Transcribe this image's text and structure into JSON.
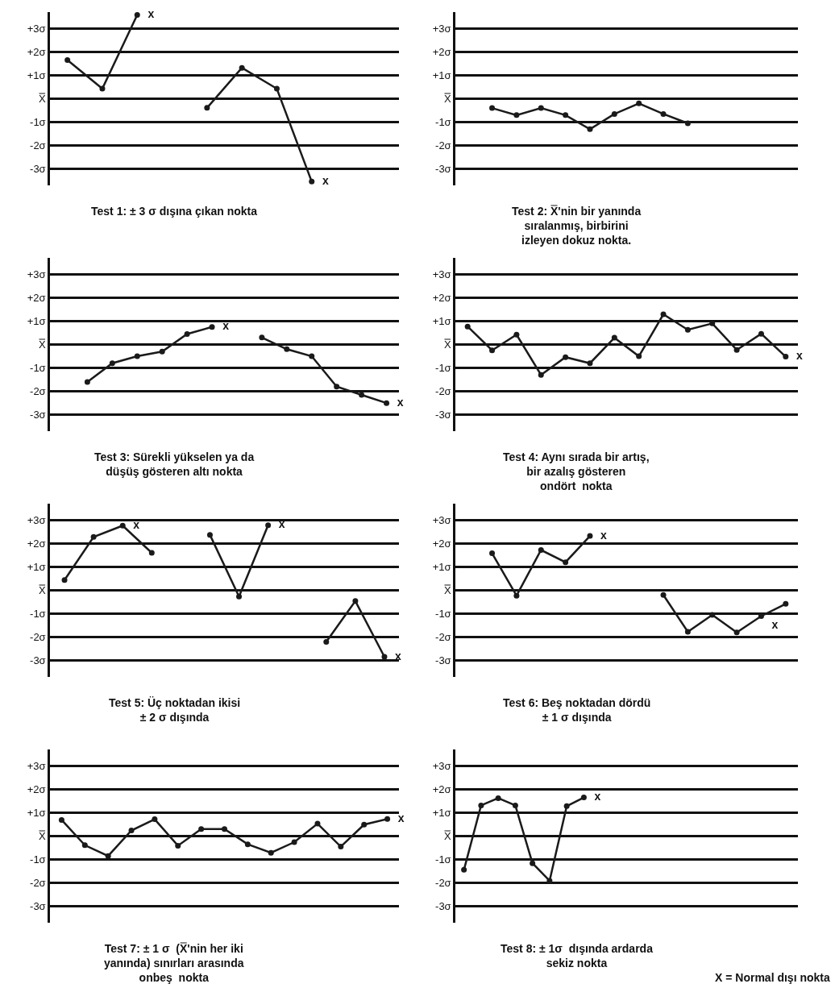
{
  "chart_data": [
    {
      "type": "line",
      "title": "Test 1: ± 3 σ dışına çıkan nokta",
      "categories": [
        null,
        null,
        null,
        null,
        null,
        null,
        null,
        null,
        null,
        null
      ],
      "ylim": [
        -3.7,
        3.7
      ],
      "yticks": [
        {
          "value": 3,
          "label": "+3σ"
        },
        {
          "value": 2,
          "label": "+2σ"
        },
        {
          "value": 1,
          "label": "+1σ"
        },
        {
          "value": 0,
          "label": "X̿"
        },
        {
          "value": -1,
          "label": "-1σ"
        },
        {
          "value": -2,
          "label": "-2σ"
        },
        {
          "value": -3,
          "label": "-3σ"
        }
      ],
      "tick_labels": "y",
      "grid": "y",
      "marker": "circle",
      "line_style": "solid",
      "series": [
        {
          "color": "#1a1a1a",
          "values": [
            1.65,
            0.43,
            3.58,
            null,
            -0.39,
            1.32,
            0.43,
            -3.54,
            null,
            null
          ],
          "value_labels": [
            null,
            null,
            "x",
            null,
            null,
            null,
            null,
            "x",
            null,
            null
          ]
        }
      ]
    },
    {
      "type": "line",
      "title": "Test 2: X̿'nin bir yanında\nsıralanmış, birbirini\nizleyen dokuz nokta.",
      "categories": [
        null,
        null,
        null,
        null,
        null,
        null,
        null,
        null,
        null,
        null,
        null,
        null,
        null,
        null
      ],
      "ylim": [
        -3.7,
        3.7
      ],
      "yticks": [
        {
          "value": 3,
          "label": "+3σ"
        },
        {
          "value": 2,
          "label": "+2σ"
        },
        {
          "value": 1,
          "label": "+1σ"
        },
        {
          "value": 0,
          "label": "X̿"
        },
        {
          "value": -1,
          "label": "-1σ"
        },
        {
          "value": -2,
          "label": "-2σ"
        },
        {
          "value": -3,
          "label": "-3σ"
        }
      ],
      "tick_labels": "y",
      "grid": "y",
      "marker": "circle",
      "line_style": "solid",
      "series": [
        {
          "color": "#1a1a1a",
          "values": [
            null,
            -0.4,
            -0.7,
            -0.4,
            -0.7,
            -1.3,
            -0.65,
            -0.2,
            -0.65,
            -1.05,
            null,
            null,
            null,
            null
          ]
        }
      ]
    },
    {
      "type": "line",
      "title": "Test 3: Sürekli yükselen ya da\ndüşüş gösteren altı nokta",
      "categories": [
        null,
        null,
        null,
        null,
        null,
        null,
        null,
        null,
        null,
        null,
        null,
        null,
        null,
        null
      ],
      "ylim": [
        -3.7,
        3.7
      ],
      "yticks": [
        {
          "value": 3,
          "label": "+3σ"
        },
        {
          "value": 2,
          "label": "+2σ"
        },
        {
          "value": 1,
          "label": "+1σ"
        },
        {
          "value": 0,
          "label": "X̿"
        },
        {
          "value": -1,
          "label": "-1σ"
        },
        {
          "value": -2,
          "label": "-2σ"
        },
        {
          "value": -3,
          "label": "-3σ"
        }
      ],
      "tick_labels": "y",
      "grid": "y",
      "marker": "circle",
      "line_style": "solid",
      "series": [
        {
          "color": "#1a1a1a",
          "values": [
            null,
            -1.6,
            -0.8,
            -0.5,
            -0.3,
            0.45,
            0.75,
            null,
            0.3,
            -0.2,
            -0.5,
            -1.8,
            -2.15,
            -2.5
          ],
          "value_labels": [
            null,
            null,
            null,
            null,
            null,
            null,
            "x",
            null,
            null,
            null,
            null,
            null,
            null,
            "x"
          ]
        }
      ]
    },
    {
      "type": "line",
      "title": "Test 4: Aynı sırada bir artış,\nbir azalış gösteren\nondört  nokta",
      "categories": [
        null,
        null,
        null,
        null,
        null,
        null,
        null,
        null,
        null,
        null,
        null,
        null,
        null,
        null
      ],
      "ylim": [
        -3.7,
        3.7
      ],
      "yticks": [
        {
          "value": 3,
          "label": "+3σ"
        },
        {
          "value": 2,
          "label": "+2σ"
        },
        {
          "value": 1,
          "label": "+1σ"
        },
        {
          "value": 0,
          "label": "X̿"
        },
        {
          "value": -1,
          "label": "-1σ"
        },
        {
          "value": -2,
          "label": "-2σ"
        },
        {
          "value": -3,
          "label": "-3σ"
        }
      ],
      "tick_labels": "y",
      "grid": "y",
      "marker": "circle",
      "line_style": "solid",
      "series": [
        {
          "color": "#1a1a1a",
          "values": [
            0.77,
            -0.25,
            0.42,
            -1.3,
            -0.54,
            -0.8,
            0.29,
            -0.5,
            1.29,
            0.63,
            0.9,
            -0.23,
            0.46,
            -0.52
          ],
          "value_labels": [
            null,
            null,
            null,
            null,
            null,
            null,
            null,
            null,
            null,
            null,
            null,
            null,
            null,
            "x"
          ]
        }
      ]
    },
    {
      "type": "line",
      "title": "Test 5: Üç noktadan ikisi\n± 2 σ dışında",
      "categories": [
        null,
        null,
        null,
        null,
        null,
        null,
        null,
        null,
        null,
        null,
        null,
        null
      ],
      "ylim": [
        -3.7,
        3.7
      ],
      "yticks": [
        {
          "value": 3,
          "label": "+3σ"
        },
        {
          "value": 2,
          "label": "+2σ"
        },
        {
          "value": 1,
          "label": "+1σ"
        },
        {
          "value": 0,
          "label": "X̿"
        },
        {
          "value": -1,
          "label": "-1σ"
        },
        {
          "value": -2,
          "label": "-2σ"
        },
        {
          "value": -3,
          "label": "-3σ"
        }
      ],
      "tick_labels": "y",
      "grid": "y",
      "marker": "circle",
      "line_style": "solid",
      "series": [
        {
          "color": "#1a1a1a",
          "values": [
            0.44,
            2.28,
            2.76,
            1.6,
            null,
            2.37,
            -0.27,
            2.78,
            null,
            -2.2,
            -0.46,
            -2.84
          ],
          "value_labels": [
            null,
            null,
            "x",
            null,
            null,
            null,
            null,
            "x",
            null,
            null,
            null,
            "x"
          ]
        }
      ]
    },
    {
      "type": "line",
      "title": "Test 6: Beş noktadan dördü\n± 1 σ dışında",
      "categories": [
        null,
        null,
        null,
        null,
        null,
        null,
        null,
        null,
        null,
        null,
        null,
        null,
        null,
        null
      ],
      "ylim": [
        -3.7,
        3.7
      ],
      "yticks": [
        {
          "value": 3,
          "label": "+3σ"
        },
        {
          "value": 2,
          "label": "+2σ"
        },
        {
          "value": 1,
          "label": "+1σ"
        },
        {
          "value": 0,
          "label": "X̿"
        },
        {
          "value": -1,
          "label": "-1σ"
        },
        {
          "value": -2,
          "label": "-2σ"
        },
        {
          "value": -3,
          "label": "-3σ"
        }
      ],
      "tick_labels": "y",
      "grid": "y",
      "marker": "circle",
      "line_style": "solid",
      "series": [
        {
          "color": "#1a1a1a",
          "values": [
            null,
            1.58,
            -0.23,
            1.72,
            1.2,
            2.32,
            null,
            null,
            -0.2,
            -1.77,
            -1.05,
            -1.8,
            -1.1,
            -0.58
          ],
          "value_labels": [
            null,
            null,
            null,
            null,
            null,
            "x",
            null,
            null,
            null,
            null,
            null,
            null,
            "x",
            null
          ]
        }
      ]
    },
    {
      "type": "line",
      "title": "Test 7: ± 1 σ  (X̿'nin her iki\nyanında) sınırları arasında\nonbeş  nokta",
      "categories": [
        null,
        null,
        null,
        null,
        null,
        null,
        null,
        null,
        null,
        null,
        null,
        null,
        null,
        null,
        null
      ],
      "ylim": [
        -3.7,
        3.7
      ],
      "yticks": [
        {
          "value": 3,
          "label": "+3σ"
        },
        {
          "value": 2,
          "label": "+2σ"
        },
        {
          "value": 1,
          "label": "+1σ"
        },
        {
          "value": 0,
          "label": "X̿"
        },
        {
          "value": -1,
          "label": "-1σ"
        },
        {
          "value": -2,
          "label": "-2σ"
        },
        {
          "value": -3,
          "label": "-3σ"
        }
      ],
      "tick_labels": "y",
      "grid": "y",
      "marker": "circle",
      "line_style": "solid",
      "series": [
        {
          "color": "#1a1a1a",
          "values": [
            0.69,
            -0.39,
            -0.85,
            0.24,
            0.72,
            -0.41,
            0.3,
            0.3,
            -0.35,
            -0.71,
            -0.26,
            0.53,
            -0.45,
            0.49,
            0.73
          ],
          "value_labels": [
            null,
            null,
            null,
            null,
            null,
            null,
            null,
            null,
            null,
            null,
            null,
            null,
            null,
            null,
            "x"
          ]
        }
      ]
    },
    {
      "type": "line",
      "title": "Test 8: ± 1σ  dışında ardarda\nsekiz nokta",
      "categories": [
        null,
        null,
        null,
        null,
        null,
        null,
        null,
        null,
        null,
        null,
        null,
        null,
        null,
        null,
        null,
        null,
        null,
        null,
        null,
        null
      ],
      "ylim": [
        -3.7,
        3.7
      ],
      "yticks": [
        {
          "value": 3,
          "label": "+3σ"
        },
        {
          "value": 2,
          "label": "+2σ"
        },
        {
          "value": 1,
          "label": "+1σ"
        },
        {
          "value": 0,
          "label": "X̿"
        },
        {
          "value": -1,
          "label": "-1σ"
        },
        {
          "value": -2,
          "label": "-2σ"
        },
        {
          "value": -3,
          "label": "-3σ"
        }
      ],
      "tick_labels": "y",
      "grid": "y",
      "marker": "circle",
      "line_style": "solid",
      "series": [
        {
          "color": "#1a1a1a",
          "values": [
            -1.44,
            1.31,
            1.62,
            1.31,
            -1.16,
            -1.91,
            1.28,
            1.65,
            null,
            null,
            null,
            null,
            null,
            null,
            null,
            null,
            null,
            null,
            null,
            null
          ],
          "value_labels": [
            null,
            null,
            null,
            null,
            null,
            null,
            null,
            "x",
            null,
            null,
            null,
            null,
            null,
            null,
            null,
            null,
            null,
            null,
            null,
            null
          ]
        }
      ],
      "annotations": [
        "X = Normal dışı nokta"
      ]
    }
  ]
}
